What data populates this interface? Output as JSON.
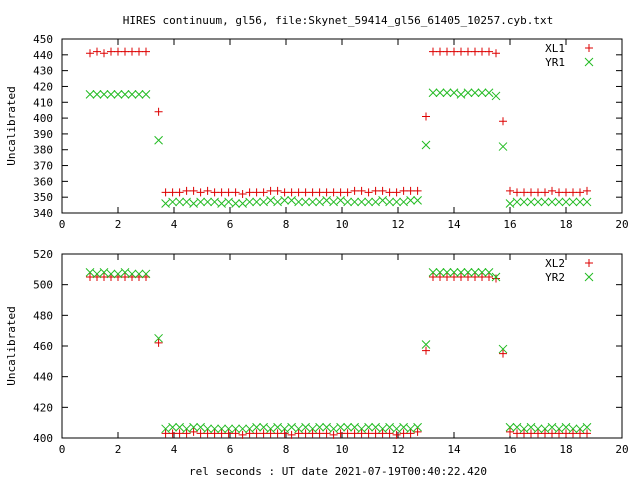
{
  "title": "HIRES continuum, gl56, file:Skynet_59414_gl56_61405_10257.cyb.txt",
  "xlabel": "rel seconds : UT date 2021-07-19T00:40:22.420",
  "colors": {
    "XL": "#dd0000",
    "YR": "#22bb22",
    "axis": "#000000"
  },
  "chart_data": [
    {
      "type": "scatter",
      "title": "HIRES continuum, gl56, file:Skynet_59414_gl56_61405_10257.cyb.txt",
      "xlabel": "",
      "ylabel": "Uncalibrated",
      "xlim": [
        0,
        20
      ],
      "ylim": [
        340,
        450
      ],
      "xticks": [
        0,
        2,
        4,
        6,
        8,
        10,
        12,
        14,
        16,
        18,
        20
      ],
      "yticks": [
        340,
        350,
        360,
        370,
        380,
        390,
        400,
        410,
        420,
        430,
        440,
        450
      ],
      "grid": false,
      "legend_position": "top-right",
      "series": [
        {
          "name": "XL1",
          "marker": "+",
          "color": "#dd0000",
          "x": [
            1.0,
            1.25,
            1.5,
            1.75,
            2.0,
            2.25,
            2.5,
            2.75,
            3.0,
            3.45,
            3.7,
            3.95,
            4.2,
            4.45,
            4.7,
            4.95,
            5.2,
            5.45,
            5.7,
            5.95,
            6.2,
            6.45,
            6.7,
            6.95,
            7.2,
            7.45,
            7.7,
            7.95,
            8.2,
            8.45,
            8.7,
            8.95,
            9.2,
            9.45,
            9.7,
            9.95,
            10.2,
            10.45,
            10.7,
            10.95,
            11.2,
            11.45,
            11.7,
            11.95,
            12.2,
            12.45,
            12.7,
            13.0,
            13.25,
            13.5,
            13.75,
            14.0,
            14.25,
            14.5,
            14.75,
            15.0,
            15.25,
            15.5,
            15.75,
            16.0,
            16.25,
            16.5,
            16.75,
            17.0,
            17.25,
            17.5,
            17.75,
            18.0,
            18.25,
            18.5,
            18.75
          ],
          "y": [
            441,
            442,
            441,
            442,
            442,
            442,
            442,
            442,
            442,
            404,
            353,
            353,
            353,
            354,
            354,
            353,
            354,
            353,
            353,
            353,
            353,
            352,
            353,
            353,
            353,
            354,
            354,
            353,
            353,
            353,
            353,
            353,
            353,
            353,
            353,
            353,
            353,
            354,
            354,
            353,
            354,
            354,
            353,
            353,
            354,
            354,
            354,
            401,
            442,
            442,
            442,
            442,
            442,
            442,
            442,
            442,
            442,
            441,
            398,
            354,
            353,
            353,
            353,
            353,
            353,
            354,
            353,
            353,
            353,
            353,
            354
          ]
        },
        {
          "name": "YR1",
          "marker": "x",
          "color": "#22bb22",
          "x": [
            1.0,
            1.25,
            1.5,
            1.75,
            2.0,
            2.25,
            2.5,
            2.75,
            3.0,
            3.45,
            3.7,
            3.95,
            4.2,
            4.45,
            4.7,
            4.95,
            5.2,
            5.45,
            5.7,
            5.95,
            6.2,
            6.45,
            6.7,
            6.95,
            7.2,
            7.45,
            7.7,
            7.95,
            8.2,
            8.45,
            8.7,
            8.95,
            9.2,
            9.45,
            9.7,
            9.95,
            10.2,
            10.45,
            10.7,
            10.95,
            11.2,
            11.45,
            11.7,
            11.95,
            12.2,
            12.45,
            12.7,
            13.0,
            13.25,
            13.5,
            13.75,
            14.0,
            14.25,
            14.5,
            14.75,
            15.0,
            15.25,
            15.5,
            15.75,
            16.0,
            16.25,
            16.5,
            16.75,
            17.0,
            17.25,
            17.5,
            17.75,
            18.0,
            18.25,
            18.5,
            18.75
          ],
          "y": [
            415,
            415,
            415,
            415,
            415,
            415,
            415,
            415,
            415,
            386,
            346,
            347,
            347,
            347,
            346,
            347,
            347,
            347,
            346,
            347,
            346,
            346,
            347,
            347,
            347,
            348,
            347,
            348,
            348,
            347,
            347,
            347,
            347,
            348,
            347,
            348,
            347,
            347,
            347,
            347,
            347,
            348,
            347,
            347,
            347,
            348,
            348,
            383,
            416,
            416,
            416,
            416,
            415,
            416,
            416,
            416,
            416,
            414,
            382,
            346,
            347,
            347,
            347,
            347,
            347,
            347,
            347,
            347,
            347,
            347,
            347
          ]
        }
      ]
    },
    {
      "type": "scatter",
      "title": "",
      "xlabel": "rel seconds : UT date 2021-07-19T00:40:22.420",
      "ylabel": "Uncalibrated",
      "xlim": [
        0,
        20
      ],
      "ylim": [
        400,
        520
      ],
      "xticks": [
        0,
        2,
        4,
        6,
        8,
        10,
        12,
        14,
        16,
        18,
        20
      ],
      "yticks": [
        400,
        420,
        440,
        460,
        480,
        500,
        520
      ],
      "grid": false,
      "legend_position": "top-right",
      "series": [
        {
          "name": "XL2",
          "marker": "+",
          "color": "#dd0000",
          "x": [
            1.0,
            1.25,
            1.5,
            1.75,
            2.0,
            2.25,
            2.5,
            2.75,
            3.0,
            3.45,
            3.7,
            3.95,
            4.2,
            4.45,
            4.7,
            4.95,
            5.2,
            5.45,
            5.7,
            5.95,
            6.2,
            6.45,
            6.7,
            6.95,
            7.2,
            7.45,
            7.7,
            7.95,
            8.2,
            8.45,
            8.7,
            8.95,
            9.2,
            9.45,
            9.7,
            9.95,
            10.2,
            10.45,
            10.7,
            10.95,
            11.2,
            11.45,
            11.7,
            11.95,
            12.2,
            12.45,
            12.7,
            13.0,
            13.25,
            13.5,
            13.75,
            14.0,
            14.25,
            14.5,
            14.75,
            15.0,
            15.25,
            15.5,
            15.75,
            16.0,
            16.25,
            16.5,
            16.75,
            17.0,
            17.25,
            17.5,
            17.75,
            18.0,
            18.25,
            18.5,
            18.75
          ],
          "y": [
            505,
            505,
            505,
            505,
            505,
            505,
            505,
            505,
            505,
            462,
            403,
            403,
            403,
            403,
            404,
            403,
            403,
            403,
            403,
            403,
            403,
            402,
            403,
            403,
            403,
            403,
            403,
            403,
            402,
            403,
            403,
            403,
            403,
            403,
            402,
            403,
            403,
            403,
            403,
            403,
            403,
            403,
            403,
            402,
            403,
            403,
            404,
            457,
            505,
            505,
            505,
            505,
            505,
            505,
            505,
            505,
            505,
            504,
            455,
            404,
            403,
            403,
            403,
            403,
            403,
            403,
            403,
            403,
            403,
            403,
            403
          ]
        },
        {
          "name": "YR2",
          "marker": "x",
          "color": "#22bb22",
          "x": [
            1.0,
            1.25,
            1.5,
            1.75,
            2.0,
            2.25,
            2.5,
            2.75,
            3.0,
            3.45,
            3.7,
            3.95,
            4.2,
            4.45,
            4.7,
            4.95,
            5.2,
            5.45,
            5.7,
            5.95,
            6.2,
            6.45,
            6.7,
            6.95,
            7.2,
            7.45,
            7.7,
            7.95,
            8.2,
            8.45,
            8.7,
            8.95,
            9.2,
            9.45,
            9.7,
            9.95,
            10.2,
            10.45,
            10.7,
            10.95,
            11.2,
            11.45,
            11.7,
            11.95,
            12.2,
            12.45,
            12.7,
            13.0,
            13.25,
            13.5,
            13.75,
            14.0,
            14.25,
            14.5,
            14.75,
            15.0,
            15.25,
            15.5,
            15.75,
            16.0,
            16.25,
            16.5,
            16.75,
            17.0,
            17.25,
            17.5,
            17.75,
            18.0,
            18.25,
            18.5,
            18.75
          ],
          "y": [
            508,
            507,
            508,
            507,
            507,
            508,
            507,
            507,
            507,
            465,
            406,
            407,
            407,
            406,
            407,
            407,
            406,
            406,
            406,
            406,
            406,
            406,
            406,
            407,
            407,
            406,
            407,
            406,
            407,
            406,
            407,
            406,
            407,
            407,
            406,
            407,
            407,
            407,
            406,
            407,
            407,
            406,
            407,
            406,
            407,
            406,
            407,
            461,
            508,
            508,
            508,
            508,
            508,
            508,
            508,
            508,
            508,
            505,
            458,
            407,
            407,
            406,
            407,
            406,
            406,
            407,
            406,
            407,
            406,
            406,
            407
          ]
        }
      ]
    }
  ]
}
